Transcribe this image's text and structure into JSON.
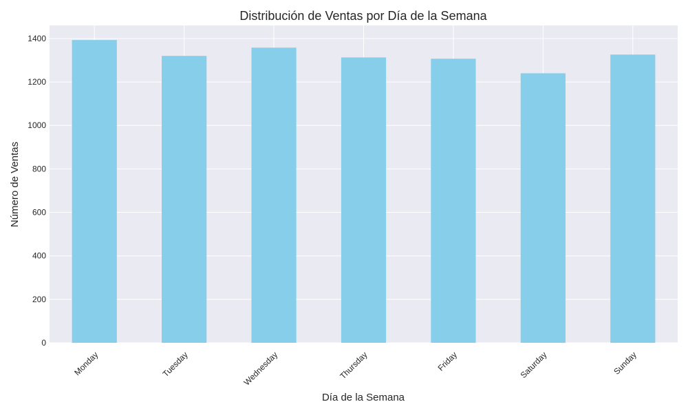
{
  "chart_data": {
    "type": "bar",
    "title": "Distribución de Ventas por Día de la Semana",
    "xlabel": "Día de la Semana",
    "ylabel": "Número de Ventas",
    "categories": [
      "Monday",
      "Tuesday",
      "Wednesday",
      "Thursday",
      "Friday",
      "Saturday",
      "Sunday"
    ],
    "values": [
      1393,
      1320,
      1358,
      1313,
      1307,
      1240,
      1326
    ],
    "ylim": [
      0,
      1460
    ],
    "yticks": [
      0,
      200,
      400,
      600,
      800,
      1000,
      1200,
      1400
    ],
    "grid": true,
    "legend": "none",
    "colors": {
      "bar": "#87CEEB",
      "plot_background": "#EAEAF2",
      "grid": "#FFFFFF",
      "text": "#262626"
    }
  }
}
